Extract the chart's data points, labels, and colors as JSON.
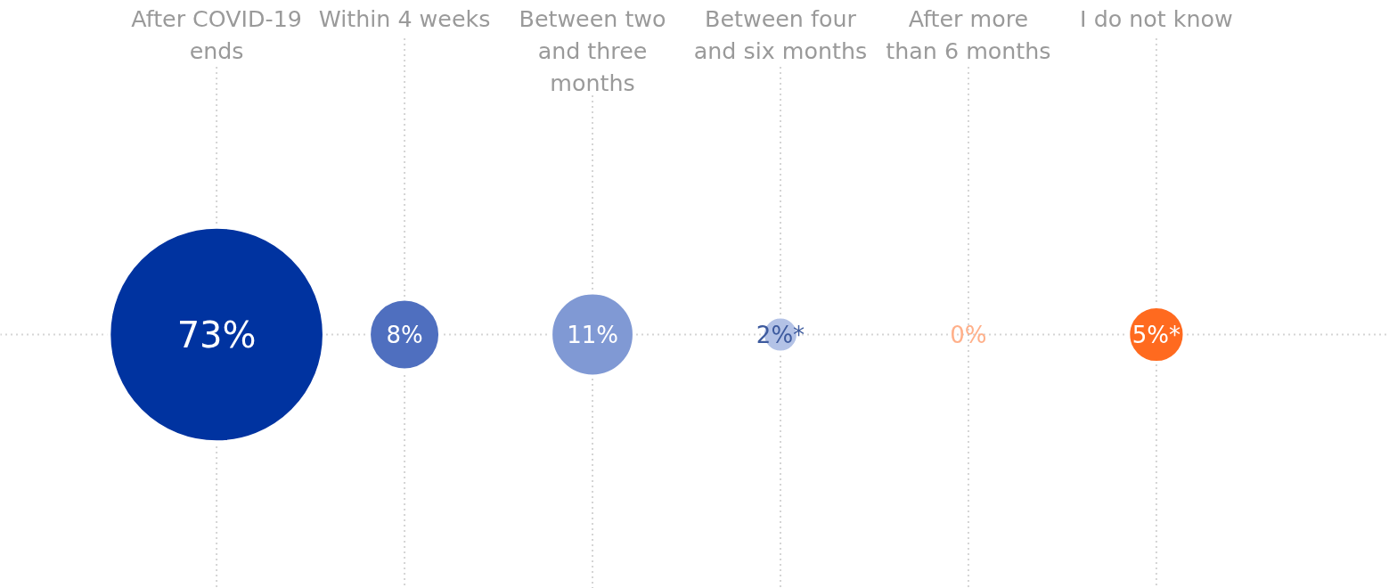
{
  "chart_data": {
    "type": "other",
    "categories": [
      "After COVID-19 ends",
      "Within 4 weeks",
      "Between two and three months",
      "Between four and six months",
      "After more than 6 months",
      "I do not know"
    ],
    "values": [
      73,
      8,
      11,
      2,
      0,
      5
    ],
    "value_labels": [
      "73%",
      "8%",
      "11%",
      "2%*",
      "0%",
      "5%*"
    ],
    "colors": [
      "#0033a0",
      "#4f6fbf",
      "#8099d4",
      "#b3c2e6",
      "#ffb08a",
      "#ff6a1f"
    ]
  }
}
